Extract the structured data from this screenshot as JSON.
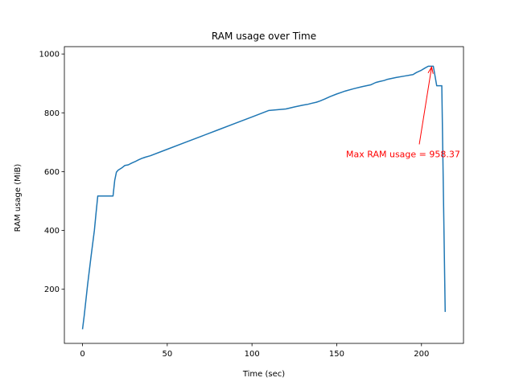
{
  "chart_data": {
    "type": "line",
    "title": "RAM usage over Time",
    "xlabel": "Time (sec)",
    "ylabel": "RAM usage (MiB)",
    "xlim": [
      -10.7,
      224.8
    ],
    "ylim": [
      16,
      1025
    ],
    "xticks": [
      0,
      50,
      100,
      150,
      200
    ],
    "yticks": [
      200,
      400,
      600,
      800,
      1000
    ],
    "grid": false,
    "series": [
      {
        "color": "#1f77b4",
        "x": [
          0,
          1,
          3,
          5,
          7,
          8,
          9,
          10,
          13,
          16,
          18,
          19,
          20,
          21,
          23,
          25,
          27,
          29,
          31,
          33,
          35,
          36,
          37,
          40,
          50,
          60,
          70,
          80,
          90,
          100,
          110,
          120,
          125,
          130,
          133,
          135,
          138,
          140,
          143,
          146,
          150,
          153,
          155,
          160,
          165,
          170,
          173,
          175,
          178,
          180,
          185,
          190,
          195,
          197,
          200,
          202,
          204,
          206,
          207,
          209,
          211,
          212,
          214
        ],
        "y": [
          64,
          110,
          215,
          310,
          400,
          460,
          517,
          517,
          517,
          517,
          517,
          570,
          598,
          605,
          612,
          621,
          623,
          629,
          634,
          640,
          645,
          647,
          649,
          654,
          676,
          698,
          720,
          742,
          764,
          786,
          808,
          813,
          820,
          826,
          829,
          832,
          836,
          840,
          847,
          855,
          864,
          870,
          874,
          882,
          889,
          895,
          903,
          906,
          910,
          914,
          920,
          925,
          930,
          937,
          945,
          952,
          958.37,
          958.37,
          958.37,
          892,
          892,
          892,
          123
        ]
      }
    ],
    "annotations": [
      {
        "text": "Max RAM usage = 958.37",
        "color": "#ff0000",
        "xy": [
          206,
          958.37
        ],
        "xytext": [
          155.5,
          660
        ]
      }
    ]
  }
}
